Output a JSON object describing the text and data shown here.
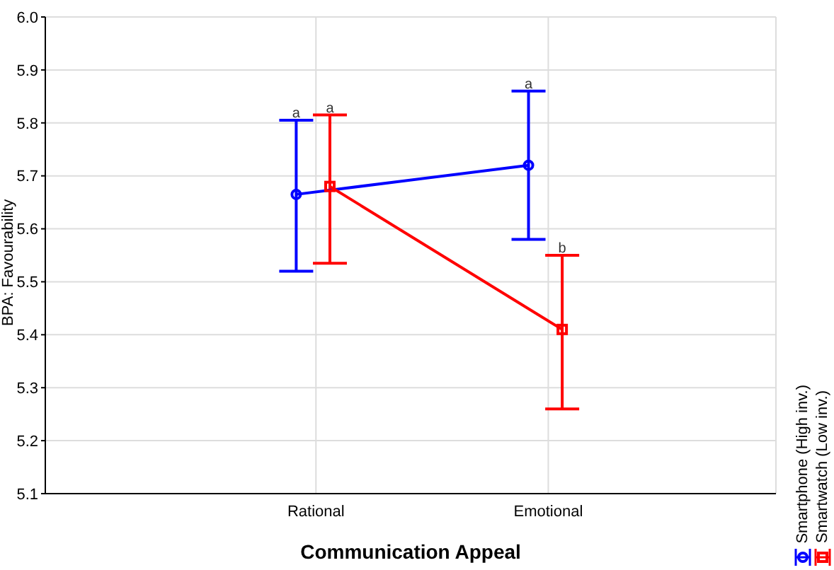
{
  "chart_data": {
    "type": "line",
    "xlabel": "Communication Appeal",
    "ylabel": "BPA: Favourability",
    "categories": [
      "Rational",
      "Emotional"
    ],
    "series": [
      {
        "name": "Smartphone (High inv.)",
        "color": "#0000ff",
        "marker": "circle",
        "values": [
          5.665,
          5.72
        ],
        "errors": [
          [
            5.52,
            5.805
          ],
          [
            5.58,
            5.86
          ]
        ]
      },
      {
        "name": "Smartwatch (Low inv.)",
        "color": "#ff0000",
        "marker": "square",
        "values": [
          5.68,
          5.41
        ],
        "errors": [
          [
            5.535,
            5.815
          ],
          [
            5.26,
            5.55
          ]
        ]
      }
    ],
    "ylim": [
      5.1,
      6.0
    ],
    "yticks": [
      5.1,
      5.2,
      5.3,
      5.4,
      5.5,
      5.6,
      5.7,
      5.8,
      5.9,
      {
        "value": 6.0,
        "label": "6.0"
      }
    ],
    "grid": true,
    "legend": "bottom right",
    "annotations": [
      {
        "text": "a",
        "x": "Rational",
        "y": 5.805
      },
      {
        "text": "a",
        "x": "Rational",
        "y": 5.815
      },
      {
        "text": "a",
        "x": "Emotional",
        "y": 5.86
      },
      {
        "text": "b",
        "x": "Emotional",
        "y": 5.55
      }
    ]
  }
}
